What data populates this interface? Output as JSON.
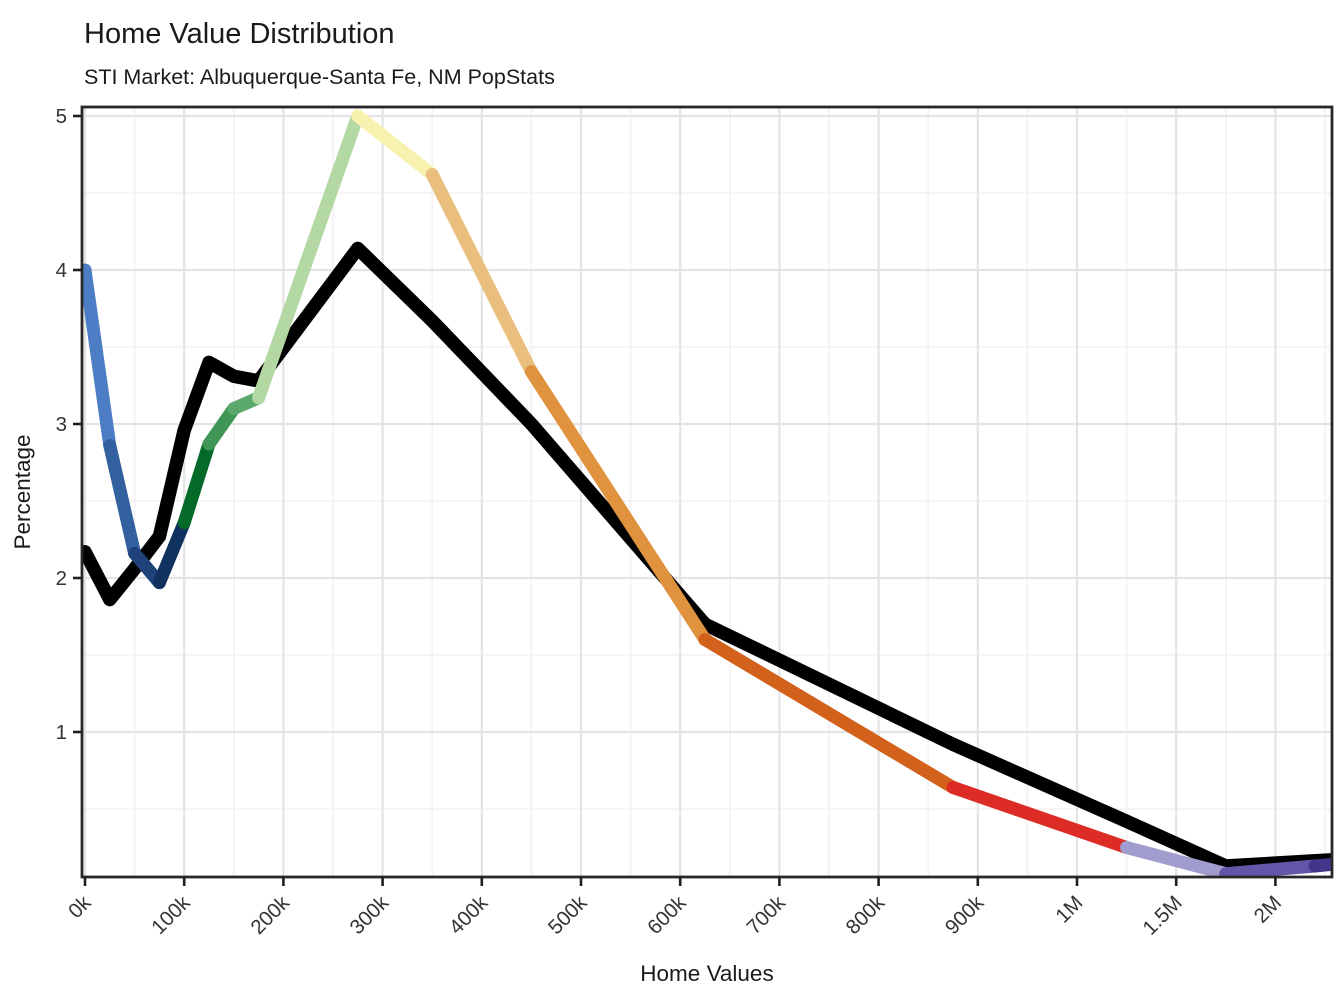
{
  "title": "Home Value Distribution",
  "subtitle": "STI Market: Albuquerque-Santa Fe, NM PopStats",
  "x_axis": {
    "label": "Home Values",
    "tick_labels": [
      "0k",
      "100k",
      "200k",
      "300k",
      "400k",
      "500k",
      "600k",
      "700k",
      "800k",
      "900k",
      "1M",
      "1.5M",
      "2M"
    ],
    "tick_values_k": [
      0,
      100,
      200,
      300,
      400,
      500,
      600,
      700,
      800,
      900,
      1000,
      1500,
      2000
    ],
    "minor_values_k": [
      50,
      150,
      250,
      350,
      450,
      550,
      650,
      750,
      850,
      950,
      1250,
      1750,
      2250
    ]
  },
  "y_axis": {
    "label": "Percentage",
    "tick_labels": [
      "1",
      "2",
      "3",
      "4",
      "5"
    ],
    "tick_values": [
      1,
      2,
      3,
      4,
      5
    ],
    "minor_values": [
      0.5,
      1.5,
      2.5,
      3.5,
      4.5
    ]
  },
  "chart_data": {
    "type": "line",
    "title": "Home Value Distribution",
    "subtitle": "STI Market: Albuquerque-Santa Fe, NM PopStats",
    "xlabel": "Home Values",
    "ylabel": "Percentage",
    "x_tick_labels": [
      "0k",
      "100k",
      "200k",
      "300k",
      "400k",
      "500k",
      "600k",
      "700k",
      "800k",
      "900k",
      "1M",
      "1.5M",
      "2M"
    ],
    "ylim": [
      0.05,
      5.06
    ],
    "grid": "on",
    "legend": "none",
    "series": [
      {
        "name": "black_line",
        "color": "#000000",
        "x_k": [
          0,
          25,
          50,
          75,
          100,
          125,
          150,
          175,
          275,
          350,
          450,
          625,
          875,
          1250,
          1750,
          2280
        ],
        "y": [
          2.17,
          1.86,
          2.06,
          2.27,
          2.96,
          3.4,
          3.31,
          3.28,
          4.14,
          3.67,
          3.0,
          1.7,
          0.92,
          0.42,
          0.13,
          0.17
        ]
      },
      {
        "name": "colored_segment_line",
        "x_k": [
          0,
          25,
          50,
          75,
          100,
          125,
          150,
          175,
          275,
          350,
          450,
          625,
          875,
          1250,
          1750,
          2200,
          2280
        ],
        "y": [
          4.0,
          2.86,
          2.16,
          1.97,
          2.36,
          2.87,
          3.1,
          3.17,
          5.0,
          4.62,
          3.34,
          1.6,
          0.64,
          0.25,
          0.08,
          0.13,
          0.14
        ],
        "segment_colors": [
          "#4d7dc4",
          "#33609e",
          "#20427a",
          "#11315e",
          "#046a29",
          "#3f9655",
          "#5aa86b",
          "#b3d8a4",
          "#f8f2b0",
          "#eabf7e",
          "#e0923f",
          "#d2611b",
          "#dd2c25",
          "#a09dce",
          "#6455a8",
          "#44348a"
        ]
      }
    ]
  },
  "colors": {
    "background": "#ffffff",
    "panel_border": "#282828",
    "grid_major": "#e4e4e4",
    "grid_minor": "#f2f2f2",
    "tick_mark": "#1f1f1f",
    "tick_label": "#343434",
    "text": "#1a1a1a"
  }
}
